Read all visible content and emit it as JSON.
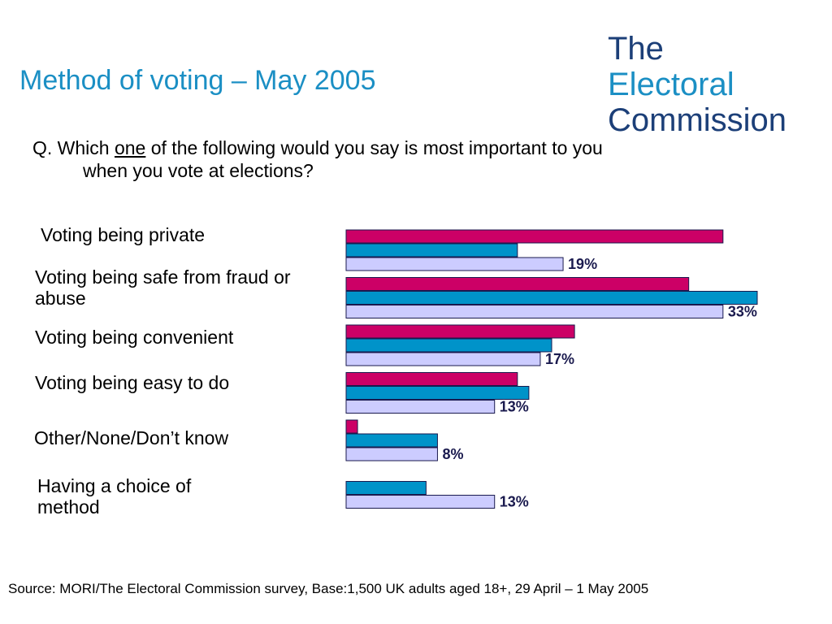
{
  "title": "Method of voting – May 2005",
  "logo": {
    "line1": "The",
    "line2": "Electoral",
    "line3": "Commission"
  },
  "question": {
    "prefix": "Q. Which ",
    "emphasis": "one",
    "rest": " of the following would you say is most important to you",
    "line2": "when you vote at elections?"
  },
  "source": "Source: MORI/The Electoral Commission survey, Base:1,500 UK adults aged 18+, 29 April – 1 May 2005",
  "colors": {
    "series_1": "#cc0066",
    "series_2": "#0093c9",
    "series_3": "#ccccff",
    "outline": "#1a1a4e"
  },
  "chart_data": {
    "type": "bar",
    "orientation": "horizontal",
    "categories": [
      "Voting being private",
      "Voting being safe from fraud or abuse",
      "Voting being convenient",
      "Voting being easy to do",
      "Other/None/Don’t know",
      "Having a choice of method"
    ],
    "series": [
      {
        "values": [
          33,
          30,
          20,
          15,
          1,
          null
        ]
      },
      {
        "values": [
          15,
          36,
          18,
          16,
          8,
          7
        ]
      },
      {
        "values": [
          19,
          33,
          17,
          13,
          8,
          13
        ]
      }
    ],
    "data_labels": [
      "19%",
      "33%",
      "17%",
      "13%",
      "8%",
      "13%"
    ],
    "xlim": [
      0,
      36
    ]
  }
}
